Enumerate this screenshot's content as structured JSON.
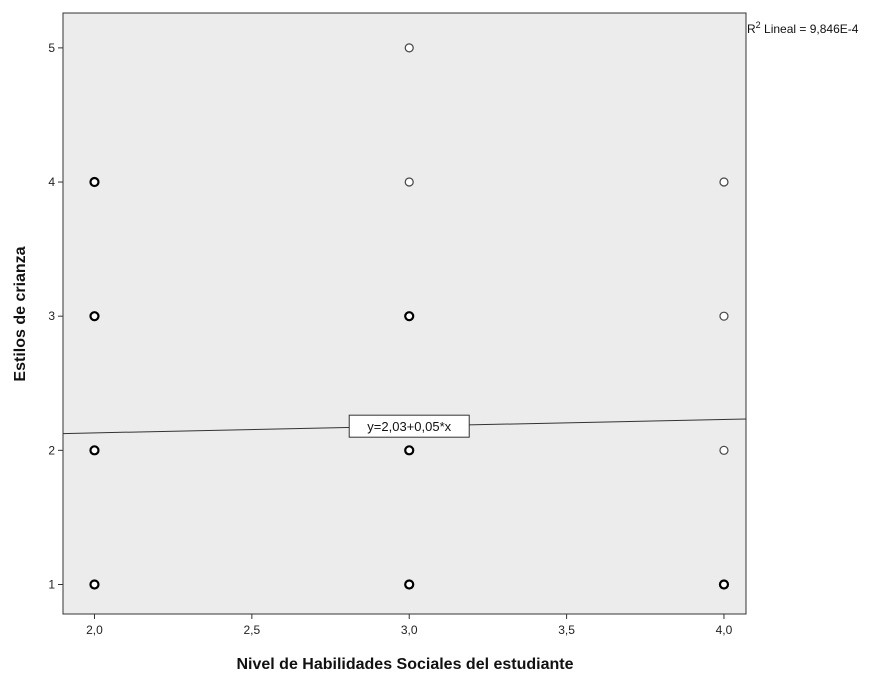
{
  "chart_data": {
    "type": "scatter",
    "title": "",
    "xlabel": "Nivel de Habilidades Sociales del estudiante",
    "ylabel": "Estilos de crianza",
    "xlim": [
      1.9,
      4.07
    ],
    "ylim": [
      0.78,
      5.26
    ],
    "x_ticks": [
      2.0,
      2.5,
      3.0,
      3.5,
      4.0
    ],
    "x_tick_labels": [
      "2,0",
      "2,5",
      "3,0",
      "3,5",
      "4,0"
    ],
    "y_ticks": [
      1,
      2,
      3,
      4,
      5
    ],
    "y_tick_labels": [
      "1",
      "2",
      "3",
      "4",
      "5"
    ],
    "grid": false,
    "plot_background": "#ececec",
    "marker": "open-circle",
    "points": [
      {
        "x": 2,
        "y": 1,
        "bold": true
      },
      {
        "x": 2,
        "y": 2,
        "bold": true
      },
      {
        "x": 2,
        "y": 3,
        "bold": true
      },
      {
        "x": 2,
        "y": 4,
        "bold": true
      },
      {
        "x": 3,
        "y": 1,
        "bold": true
      },
      {
        "x": 3,
        "y": 2,
        "bold": true
      },
      {
        "x": 3,
        "y": 3,
        "bold": true
      },
      {
        "x": 3,
        "y": 4,
        "bold": false
      },
      {
        "x": 3,
        "y": 5,
        "bold": false
      },
      {
        "x": 4,
        "y": 1,
        "bold": true
      },
      {
        "x": 4,
        "y": 2,
        "bold": false
      },
      {
        "x": 4,
        "y": 3,
        "bold": false
      },
      {
        "x": 4,
        "y": 4,
        "bold": false
      }
    ],
    "fit_line": {
      "intercept": 2.03,
      "slope": 0.05,
      "equation_label": "y=2,03+0,05*x"
    },
    "r2_label": {
      "prefix": "R",
      "superscript": "2",
      "text": " Lineal = 9,846E-4",
      "placement": "top-right outside plot"
    }
  }
}
